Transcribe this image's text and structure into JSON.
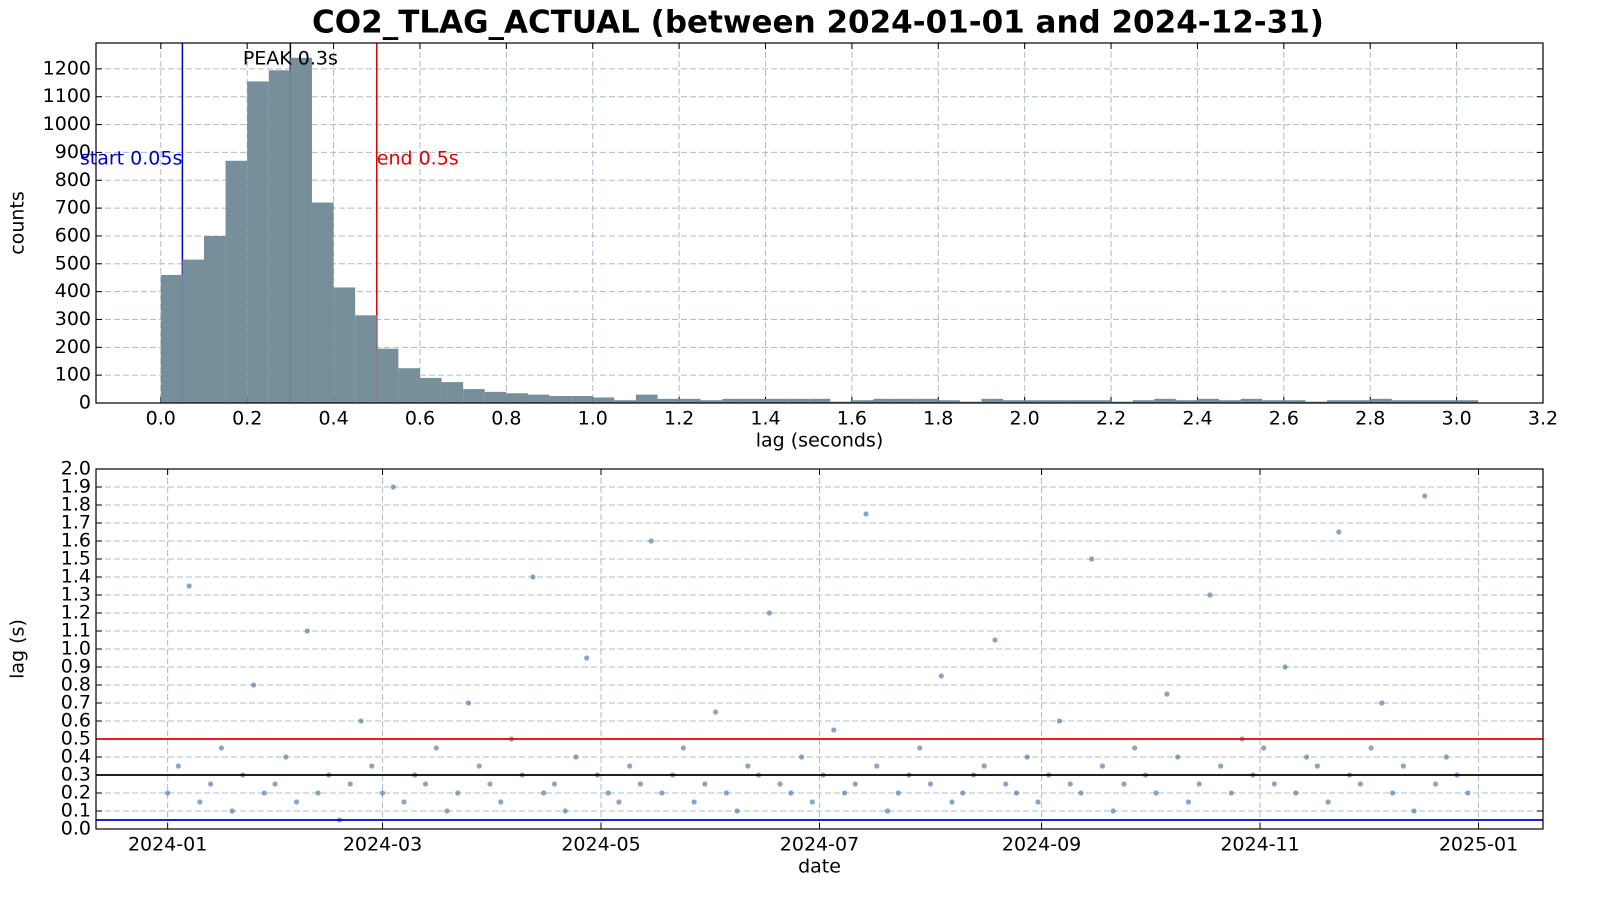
{
  "title": "CO2_TLAG_ACTUAL (between 2024-01-01 and 2024-12-31)",
  "chart_data": [
    {
      "type": "histogram",
      "xlabel": "lag (seconds)",
      "ylabel": "counts",
      "color": "#778f9b",
      "grid": true,
      "bins": [
        0,
        0.05,
        0.1,
        0.15,
        0.2,
        0.25,
        0.3,
        0.35,
        0.4,
        0.45,
        0.5,
        0.55,
        0.6,
        0.65,
        0.7,
        0.75,
        0.8,
        0.85,
        0.9,
        0.95,
        1,
        1.05,
        1.1,
        1.15,
        1.2,
        1.25,
        1.3,
        1.35,
        1.4,
        1.45,
        1.5,
        1.55,
        1.6,
        1.65,
        1.7,
        1.75,
        1.8,
        1.85,
        1.9,
        1.95,
        2,
        2.05,
        2.1,
        2.15,
        2.2,
        2.25,
        2.3,
        2.35,
        2.4,
        2.45,
        2.5,
        2.55,
        2.6,
        2.65,
        2.7,
        2.75,
        2.8,
        2.85,
        2.9,
        2.95,
        3,
        3.05
      ],
      "values": [
        460,
        515,
        600,
        870,
        1155,
        1195,
        1240,
        720,
        415,
        315,
        195,
        125,
        90,
        75,
        50,
        40,
        35,
        30,
        25,
        25,
        20,
        10,
        30,
        15,
        15,
        10,
        15,
        15,
        15,
        15,
        15,
        5,
        10,
        15,
        15,
        15,
        10,
        5,
        15,
        10,
        10,
        10,
        10,
        10,
        5,
        10,
        15,
        10,
        15,
        10,
        15,
        10,
        10,
        5,
        10,
        10,
        15,
        10,
        10,
        10,
        10
      ],
      "xlim": [
        -0.15,
        3.2
      ],
      "ylim": [
        0,
        1293
      ],
      "xticks": [
        {
          "value": 0,
          "label": "0.0"
        },
        0.2,
        0.4,
        0.6,
        0.8,
        {
          "value": 1,
          "label": "1.0"
        },
        1.2,
        1.4,
        1.6,
        1.8,
        {
          "value": 2,
          "label": "2.0"
        },
        2.2,
        2.4,
        2.6,
        2.8,
        {
          "value": 3,
          "label": "3.0"
        },
        3.2
      ],
      "yticks": [
        0,
        100,
        200,
        300,
        400,
        500,
        600,
        700,
        800,
        900,
        1000,
        1100,
        1200
      ],
      "vlines": [
        {
          "value": 0.05,
          "color": "#0000cc",
          "label": "start 0.05s",
          "anchor": "end"
        },
        {
          "value": 0.5,
          "color": "#e00000",
          "label": "end 0.5s",
          "anchor": "start"
        },
        {
          "value": 0.3,
          "color": "#000000",
          "label": "PEAK 0.3s",
          "anchor": "middle"
        }
      ]
    },
    {
      "type": "scatter",
      "xlabel": "date",
      "ylabel": "lag (s)",
      "color": "#5b7fa6",
      "grid": true,
      "xlim": [
        -20,
        384
      ],
      "ylim": [
        0,
        2
      ],
      "xticks": [
        {
          "value": 0,
          "label": "2024-01"
        },
        {
          "value": 60,
          "label": "2024-03"
        },
        {
          "value": 121,
          "label": "2024-05"
        },
        {
          "value": 182,
          "label": "2024-07"
        },
        {
          "value": 244,
          "label": "2024-09"
        },
        {
          "value": 305,
          "label": "2024-11"
        },
        {
          "value": 366,
          "label": "2025-01"
        }
      ],
      "yticks": [
        {
          "value": 0,
          "label": "0.0"
        },
        0.1,
        0.2,
        0.3,
        0.4,
        0.5,
        0.6,
        0.7,
        0.8,
        0.9,
        {
          "value": 1,
          "label": "1.0"
        },
        1.1,
        1.2,
        1.3,
        1.4,
        1.5,
        1.6,
        1.7,
        1.8,
        1.9,
        {
          "value": 2,
          "label": "2.0"
        }
      ],
      "hlines": [
        {
          "value": 0.05,
          "color": "#0000cc"
        },
        {
          "value": 0.5,
          "color": "#e00000"
        },
        {
          "value": 0.3,
          "color": "#000000"
        }
      ],
      "x": [
        0,
        3,
        6,
        9,
        12,
        15,
        18,
        21,
        24,
        27,
        30,
        33,
        36,
        39,
        42,
        45,
        48,
        51,
        54,
        57,
        60,
        63,
        66,
        69,
        72,
        75,
        78,
        81,
        84,
        87,
        90,
        93,
        96,
        99,
        102,
        105,
        108,
        111,
        114,
        117,
        120,
        123,
        126,
        129,
        132,
        135,
        138,
        141,
        144,
        147,
        150,
        153,
        156,
        159,
        162,
        165,
        168,
        171,
        174,
        177,
        180,
        183,
        186,
        189,
        192,
        195,
        198,
        201,
        204,
        207,
        210,
        213,
        216,
        219,
        222,
        225,
        228,
        231,
        234,
        237,
        240,
        243,
        246,
        249,
        252,
        255,
        258,
        261,
        264,
        267,
        270,
        273,
        276,
        279,
        282,
        285,
        288,
        291,
        294,
        297,
        300,
        303,
        306,
        309,
        312,
        315,
        318,
        321,
        324,
        327,
        330,
        333,
        336,
        339,
        342,
        345,
        348,
        351,
        354,
        357,
        360,
        363
      ],
      "values": [
        0.2,
        0.35,
        1.35,
        0.15,
        0.25,
        0.45,
        0.1,
        0.3,
        0.8,
        0.2,
        0.25,
        0.4,
        0.15,
        1.1,
        0.2,
        0.3,
        0.05,
        0.25,
        0.6,
        0.35,
        0.2,
        1.9,
        0.15,
        0.3,
        0.25,
        0.45,
        0.1,
        0.2,
        0.7,
        0.35,
        0.25,
        0.15,
        0.5,
        0.3,
        1.4,
        0.2,
        0.25,
        0.1,
        0.4,
        0.95,
        0.3,
        0.2,
        0.15,
        0.35,
        0.25,
        1.6,
        0.2,
        0.3,
        0.45,
        0.15,
        0.25,
        0.65,
        0.2,
        0.1,
        0.35,
        0.3,
        1.2,
        0.25,
        0.2,
        0.4,
        0.15,
        0.3,
        0.55,
        0.2,
        0.25,
        1.75,
        0.35,
        0.1,
        0.2,
        0.3,
        0.45,
        0.25,
        0.85,
        0.15,
        0.2,
        0.3,
        0.35,
        1.05,
        0.25,
        0.2,
        0.4,
        0.15,
        0.3,
        0.6,
        0.25,
        0.2,
        1.5,
        0.35,
        0.1,
        0.25,
        0.45,
        0.3,
        0.2,
        0.75,
        0.4,
        0.15,
        0.25,
        1.3,
        0.35,
        0.2,
        0.5,
        0.3,
        0.45,
        0.25,
        0.9,
        0.2,
        0.4,
        0.35,
        0.15,
        1.65,
        0.3,
        0.25,
        0.45,
        0.7,
        0.2,
        0.35,
        0.1,
        1.85,
        0.25,
        0.4,
        0.3,
        0.2
      ]
    }
  ]
}
